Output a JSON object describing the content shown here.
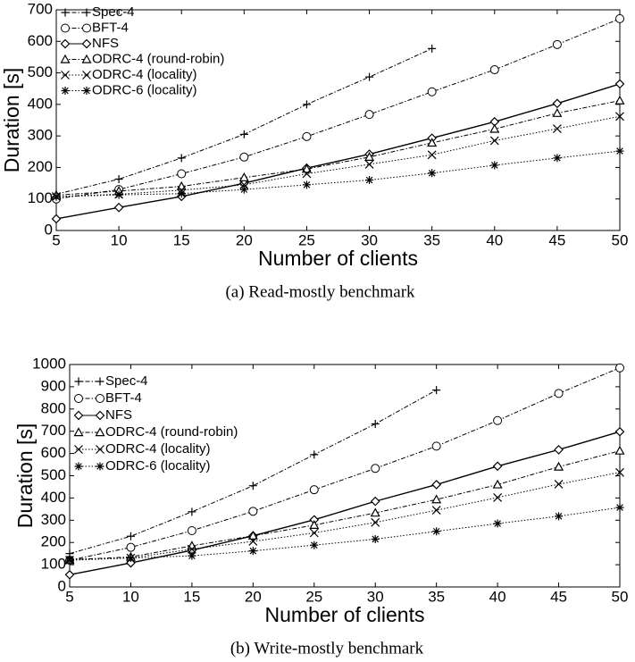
{
  "chart_data": [
    {
      "type": "line",
      "caption": "(a) Read-mostly benchmark",
      "xlabel": "Number of clients",
      "ylabel": "Duration [s]",
      "x": [
        5,
        10,
        15,
        20,
        25,
        30,
        35,
        40,
        45,
        50
      ],
      "xlim": [
        5,
        50
      ],
      "xticks": [
        5,
        10,
        15,
        20,
        25,
        30,
        35,
        40,
        45,
        50
      ],
      "ylim": [
        0,
        700
      ],
      "yticks": [
        0,
        100,
        200,
        300,
        400,
        500,
        600,
        700
      ],
      "legend": "upper left",
      "series": [
        {
          "name": "Spec-4",
          "color": "#000000",
          "marker": "plus",
          "line": "dashdot",
          "values": [
            115,
            163,
            230,
            305,
            400,
            487,
            577,
            null,
            null,
            null
          ]
        },
        {
          "name": "BFT-4",
          "color": "#000000",
          "marker": "circle",
          "line": "dashdot",
          "values": [
            100,
            130,
            180,
            233,
            298,
            368,
            440,
            510,
            590,
            672
          ]
        },
        {
          "name": "NFS",
          "color": "#000000",
          "marker": "diamond",
          "line": "solid",
          "values": [
            37,
            73,
            108,
            150,
            198,
            242,
            293,
            345,
            403,
            465
          ]
        },
        {
          "name": "ODRC-4 (round-robin)",
          "color": "#000000",
          "marker": "triangle",
          "line": "dashdot",
          "values": [
            112,
            125,
            140,
            168,
            195,
            233,
            278,
            322,
            372,
            412
          ]
        },
        {
          "name": "ODRC-4 (locality)",
          "color": "#000000",
          "marker": "x",
          "line": "dotted",
          "values": [
            108,
            115,
            128,
            145,
            180,
            210,
            240,
            285,
            323,
            362
          ]
        },
        {
          "name": "ODRC-6 (locality)",
          "color": "#000000",
          "marker": "asterisk",
          "line": "dotted",
          "values": [
            107,
            113,
            117,
            130,
            145,
            160,
            182,
            207,
            230,
            252
          ]
        }
      ]
    },
    {
      "type": "line",
      "caption": "(b) Write-mostly benchmark",
      "xlabel": "Number of clients",
      "ylabel": "Duration [s]",
      "x": [
        5,
        10,
        15,
        20,
        25,
        30,
        35,
        40,
        45,
        50
      ],
      "xlim": [
        5,
        50
      ],
      "xticks": [
        5,
        10,
        15,
        20,
        25,
        30,
        35,
        40,
        45,
        50
      ],
      "ylim": [
        0,
        1000
      ],
      "yticks": [
        0,
        100,
        200,
        300,
        400,
        500,
        600,
        700,
        800,
        900,
        1000
      ],
      "legend": "upper left",
      "series": [
        {
          "name": "Spec-4",
          "color": "#000000",
          "marker": "plus",
          "line": "dashdot",
          "values": [
            150,
            228,
            338,
            455,
            595,
            733,
            885,
            null,
            null,
            null
          ]
        },
        {
          "name": "BFT-4",
          "color": "#000000",
          "marker": "circle",
          "line": "dashdot",
          "values": [
            120,
            178,
            253,
            340,
            437,
            533,
            633,
            748,
            870,
            985
          ]
        },
        {
          "name": "NFS",
          "color": "#000000",
          "marker": "diamond",
          "line": "solid",
          "values": [
            55,
            108,
            165,
            230,
            302,
            385,
            460,
            543,
            617,
            698
          ]
        },
        {
          "name": "ODRC-4 (round-robin)",
          "color": "#000000",
          "marker": "triangle",
          "line": "dashdot",
          "values": [
            122,
            135,
            185,
            230,
            278,
            333,
            393,
            460,
            540,
            612
          ]
        },
        {
          "name": "ODRC-4 (locality)",
          "color": "#000000",
          "marker": "x",
          "line": "dotted",
          "values": [
            120,
            130,
            170,
            205,
            243,
            290,
            345,
            402,
            462,
            515
          ]
        },
        {
          "name": "ODRC-6 (locality)",
          "color": "#000000",
          "marker": "asterisk",
          "line": "dotted",
          "values": [
            125,
            130,
            140,
            162,
            188,
            215,
            250,
            285,
            318,
            357
          ]
        }
      ]
    }
  ]
}
